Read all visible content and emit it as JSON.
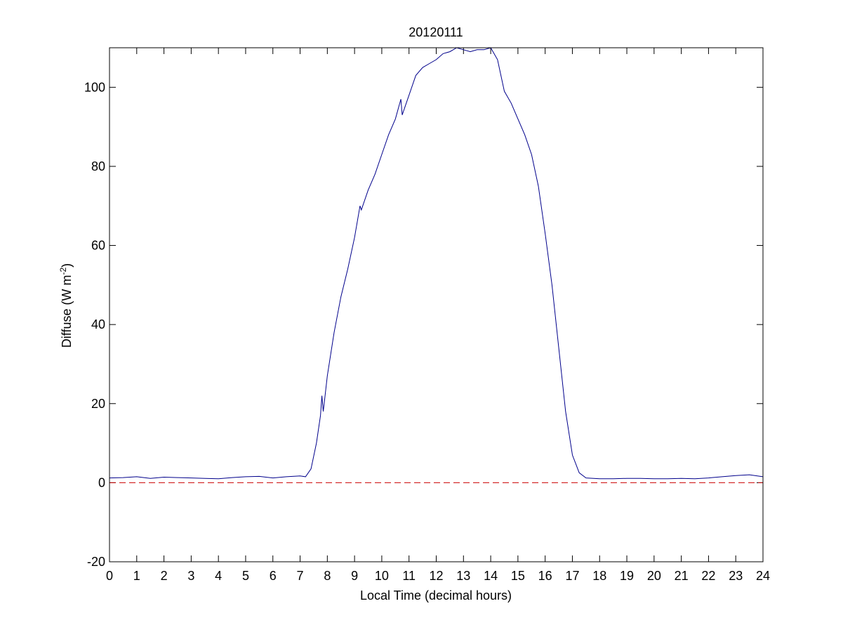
{
  "chart_data": {
    "type": "line",
    "title": "20120111",
    "xlabel": "Local Time (decimal hours)",
    "ylabel": {
      "main": "Diffuse (W m",
      "sup": "-2",
      "close": ")"
    },
    "xlim": [
      0,
      24
    ],
    "ylim": [
      -20,
      110
    ],
    "xticks": [
      0,
      1,
      2,
      3,
      4,
      5,
      6,
      7,
      8,
      9,
      10,
      11,
      12,
      13,
      14,
      15,
      16,
      17,
      18,
      19,
      20,
      21,
      22,
      23,
      24
    ],
    "yticks": [
      -20,
      0,
      20,
      40,
      60,
      80,
      100
    ],
    "grid": false,
    "reference_line": {
      "y": 0,
      "color": "#cc0000",
      "style": "dashed"
    },
    "series": [
      {
        "color": "#00008b",
        "x": [
          0,
          0.5,
          1,
          1.5,
          2,
          2.5,
          3,
          3.5,
          4,
          4.5,
          5,
          5.5,
          6,
          6.5,
          7,
          7.2,
          7.4,
          7.6,
          7.75,
          7.8,
          7.85,
          7.9,
          8,
          8.25,
          8.5,
          8.75,
          9,
          9.2,
          9.25,
          9.5,
          9.75,
          10,
          10.25,
          10.5,
          10.7,
          10.75,
          11,
          11.25,
          11.5,
          11.75,
          12,
          12.25,
          12.5,
          12.75,
          13,
          13.25,
          13.5,
          13.75,
          14,
          14.25,
          14.5,
          14.75,
          15,
          15.25,
          15.5,
          15.75,
          16,
          16.25,
          16.5,
          16.75,
          17,
          17.25,
          17.5,
          18,
          18.5,
          19,
          19.5,
          20,
          20.5,
          21,
          21.5,
          22,
          22.5,
          23,
          23.5,
          24
        ],
        "y": [
          1.2,
          1.3,
          1.5,
          1.1,
          1.4,
          1.3,
          1.2,
          1.1,
          1.0,
          1.3,
          1.5,
          1.6,
          1.2,
          1.5,
          1.7,
          1.5,
          3.5,
          10,
          17,
          22,
          18,
          21,
          27,
          38,
          47,
          54,
          62,
          70,
          69,
          74,
          78,
          83,
          88,
          92,
          97,
          93,
          98,
          103,
          105,
          106,
          107,
          108.5,
          109,
          110,
          109.5,
          109,
          109.5,
          109.5,
          110,
          107,
          99,
          96,
          92,
          88,
          83,
          75,
          63,
          50,
          34,
          18,
          7,
          2.5,
          1.2,
          1.0,
          1.0,
          1.1,
          1.1,
          1.0,
          1.0,
          1.1,
          1.0,
          1.2,
          1.5,
          1.8,
          2.0,
          1.5
        ]
      }
    ]
  }
}
